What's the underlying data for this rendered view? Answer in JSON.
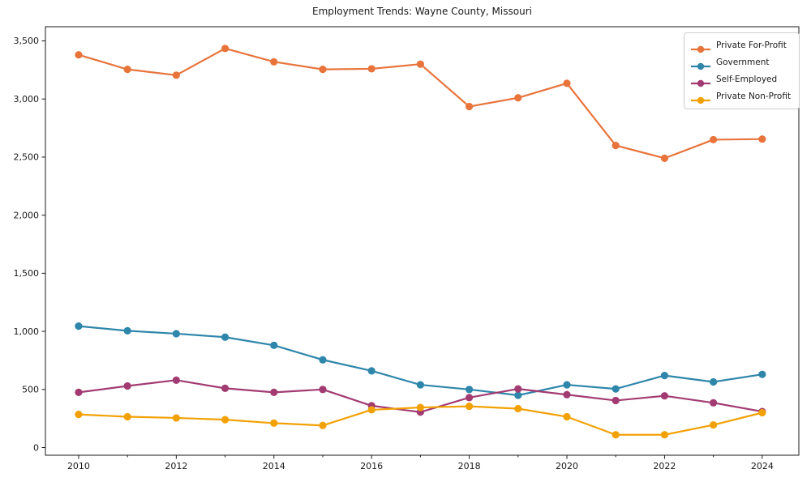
{
  "chart_data": {
    "type": "line",
    "title": "Employment Trends: Wayne County, Missouri",
    "xlabel": "",
    "ylabel": "",
    "grid": false,
    "marker": "circle",
    "legend": {
      "position": "upper right"
    },
    "x": [
      2010,
      2011,
      2012,
      2013,
      2014,
      2015,
      2016,
      2017,
      2018,
      2019,
      2020,
      2021,
      2022,
      2023,
      2024
    ],
    "series": [
      {
        "name": "Private For-Profit",
        "color": "#E8743B",
        "values": [
          3380,
          3255,
          3205,
          3435,
          3320,
          3255,
          3260,
          3300,
          2935,
          3010,
          3135,
          2600,
          2490,
          2650,
          2655
        ]
      },
      {
        "name": "Government",
        "color": "#2E86AB",
        "values": [
          1045,
          1005,
          980,
          950,
          880,
          755,
          660,
          540,
          500,
          450,
          540,
          505,
          620,
          565,
          630
        ]
      },
      {
        "name": "Self-Employed",
        "color": "#A23B72",
        "values": [
          475,
          530,
          580,
          510,
          475,
          500,
          360,
          305,
          430,
          505,
          455,
          405,
          445,
          385,
          310
        ]
      },
      {
        "name": "Private Non-Profit",
        "color": "#F2A104",
        "values": [
          285,
          265,
          255,
          240,
          210,
          190,
          325,
          345,
          355,
          335,
          265,
          110,
          110,
          195,
          300
        ]
      }
    ],
    "xlim": [
      2009.32,
      2024.75
    ],
    "ylim": [
      -66,
      3622
    ],
    "xticks": {
      "values": [
        2010,
        2012,
        2014,
        2016,
        2018,
        2020,
        2022,
        2024
      ],
      "labels": [
        "2010",
        "2012",
        "2014",
        "2016",
        "2018",
        "2020",
        "2022",
        "2024"
      ]
    },
    "xticks_minor": [
      2011,
      2013,
      2015,
      2017,
      2019,
      2021,
      2023
    ],
    "yticks": {
      "values": [
        0,
        500,
        1000,
        1500,
        2000,
        2500,
        3000,
        3500
      ],
      "labels": [
        "0",
        "500",
        "1,000",
        "1,500",
        "2,000",
        "2,500",
        "3,000",
        "3,500"
      ]
    },
    "colors": {
      "spine": "#1a1a1a",
      "tick_text": "#1a1a1a",
      "background": "#ffffff"
    }
  }
}
